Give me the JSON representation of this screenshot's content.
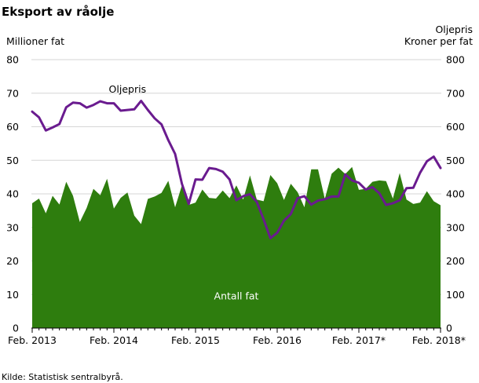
{
  "chart_data": {
    "type": "area+line",
    "title": "Eksport av råolje",
    "ylabel_left": "Millioner  fat",
    "ylabel_right_1": "Oljepris",
    "ylabel_right_2": "Kroner per fat",
    "ylim_left": [
      0,
      80
    ],
    "ylim_right": [
      0,
      800
    ],
    "yticks_left": [
      "0",
      "10",
      "20",
      "30",
      "40",
      "50",
      "60",
      "70",
      "80"
    ],
    "yticks_right": [
      "0",
      "100",
      "200",
      "300",
      "400",
      "500",
      "600",
      "700",
      "800"
    ],
    "x_tick_labels": [
      "Feb. 2013",
      "Feb. 2014",
      "Feb. 2015",
      "Feb. 2016",
      "Feb. 2017*",
      "Feb. 2018*"
    ],
    "x_tick_index": [
      0,
      12,
      24,
      36,
      48,
      60
    ],
    "grid": true,
    "series": [
      {
        "name": "Antall fat",
        "axis": "left",
        "kind": "area",
        "color": "#2e7d0e",
        "values": [
          37.2,
          38.6,
          34.2,
          39.4,
          36.8,
          43.6,
          39.4,
          31.6,
          35.8,
          41.5,
          39.6,
          44.5,
          35.6,
          38.8,
          40.4,
          33.5,
          31.0,
          38.5,
          39.2,
          40.3,
          43.9,
          36.0,
          42.5,
          36.7,
          37.4,
          41.3,
          38.8,
          38.6,
          41.0,
          38.7,
          42.5,
          38.3,
          45.5,
          38.3,
          37.8,
          45.6,
          43.2,
          38.2,
          43.0,
          40.5,
          36.0,
          47.3,
          47.3,
          38.5,
          46.0,
          47.8,
          45.9,
          48.0,
          41.2,
          41.5,
          43.6,
          44.0,
          43.8,
          38.6,
          46.2,
          38.3,
          37.0,
          37.4,
          40.8,
          37.8,
          36.6
        ]
      },
      {
        "name": "Oljepris",
        "axis": "right",
        "kind": "line",
        "color": "#6a1b8f",
        "values": [
          645,
          628,
          589,
          598,
          608,
          658,
          672,
          670,
          657,
          665,
          676,
          670,
          670,
          648,
          650,
          652,
          677,
          650,
          625,
          607,
          560,
          519,
          430,
          370,
          443,
          442,
          477,
          474,
          466,
          443,
          381,
          393,
          399,
          376,
          324,
          268,
          284,
          320,
          340,
          387,
          393,
          368,
          380,
          384,
          392,
          392,
          458,
          440,
          433,
          413,
          420,
          402,
          367,
          372,
          381,
          417,
          418,
          463,
          497,
          511,
          477
        ]
      }
    ],
    "annotations": [
      {
        "text": "Oljepris",
        "series": "Oljepris"
      },
      {
        "text": "Antall fat",
        "series": "Antall fat"
      }
    ]
  },
  "source": "Kilde: Statistisk sentralbyrå."
}
